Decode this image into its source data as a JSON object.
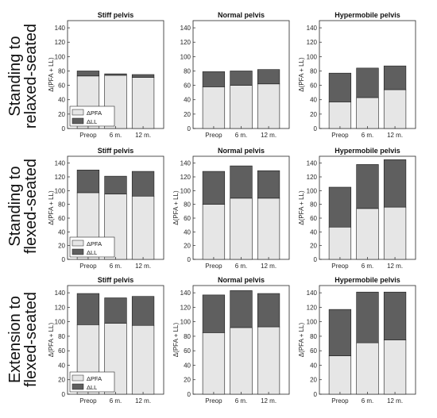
{
  "figure": {
    "row_labels": [
      [
        "Standing to",
        "relaxed-seated"
      ],
      [
        "Standing to",
        "flexed-seated"
      ],
      [
        "Extension to",
        "flexed-seated"
      ]
    ]
  },
  "colors": {
    "pfa": "#e6e6e6",
    "ll": "#5f5f5f",
    "axis": "#262626",
    "grid": "#ffffff"
  },
  "chart_data": [
    {
      "type": "bar",
      "stacked": true,
      "title": "Stiff pelvis",
      "ylabel": "Δ(PFA + LL)",
      "ylim": [
        0,
        150
      ],
      "yticks": [
        0,
        20,
        40,
        60,
        80,
        100,
        120,
        140
      ],
      "categories": [
        "Preop",
        "6 m.",
        "12 m."
      ],
      "series": [
        {
          "name": "ΔPFA",
          "values": [
            73,
            74,
            71
          ]
        },
        {
          "name": "ΔLL",
          "values": [
            7,
            2,
            4
          ]
        }
      ],
      "legend": "bottom-left"
    },
    {
      "type": "bar",
      "stacked": true,
      "title": "Normal pelvis",
      "ylabel": "",
      "ylim": [
        0,
        150
      ],
      "yticks": [
        0,
        20,
        40,
        60,
        80,
        100,
        120,
        140
      ],
      "categories": [
        "Preop",
        "6 m.",
        "12 m."
      ],
      "series": [
        {
          "name": "ΔPFA",
          "values": [
            58,
            60,
            62
          ]
        },
        {
          "name": "ΔLL",
          "values": [
            21,
            20,
            20
          ]
        }
      ]
    },
    {
      "type": "bar",
      "stacked": true,
      "title": "Hypermobile pelvis",
      "ylabel": "Δ(PFA + LL)",
      "ylim": [
        0,
        150
      ],
      "yticks": [
        0,
        20,
        40,
        60,
        80,
        100,
        120,
        140
      ],
      "categories": [
        "Preop",
        "6 m.",
        "12 m."
      ],
      "series": [
        {
          "name": "ΔPFA",
          "values": [
            37,
            43,
            54
          ]
        },
        {
          "name": "ΔLL",
          "values": [
            40,
            41,
            33
          ]
        }
      ]
    },
    {
      "type": "bar",
      "stacked": true,
      "title": "Stiff pelvis",
      "ylabel": "Δ(PFA + LL)",
      "ylim": [
        0,
        150
      ],
      "yticks": [
        0,
        20,
        40,
        60,
        80,
        100,
        120,
        140
      ],
      "categories": [
        "Preop",
        "6 m.",
        "12 m."
      ],
      "series": [
        {
          "name": "ΔPFA",
          "values": [
            97,
            95,
            92
          ]
        },
        {
          "name": "ΔLL",
          "values": [
            33,
            26,
            36
          ]
        }
      ],
      "legend": "bottom-left"
    },
    {
      "type": "bar",
      "stacked": true,
      "title": "Normal pelvis",
      "ylabel": "Δ(PFA + LL)",
      "ylim": [
        0,
        150
      ],
      "yticks": [
        0,
        20,
        40,
        60,
        80,
        100,
        120,
        140
      ],
      "categories": [
        "Preop",
        "6 m.",
        "12 m."
      ],
      "series": [
        {
          "name": "ΔPFA",
          "values": [
            80,
            89,
            89
          ]
        },
        {
          "name": "ΔLL",
          "values": [
            48,
            47,
            40
          ]
        }
      ]
    },
    {
      "type": "bar",
      "stacked": true,
      "title": "Hypermobile pelvis",
      "ylabel": "Δ(PFA + LL)",
      "ylim": [
        0,
        150
      ],
      "yticks": [
        0,
        20,
        40,
        60,
        80,
        100,
        120,
        140
      ],
      "categories": [
        "Preop",
        "6 m.",
        "12 m."
      ],
      "series": [
        {
          "name": "ΔPFA",
          "values": [
            47,
            74,
            76
          ]
        },
        {
          "name": "ΔLL",
          "values": [
            58,
            64,
            69
          ]
        }
      ]
    },
    {
      "type": "bar",
      "stacked": true,
      "title": "Stiff pelvis",
      "ylabel": "Δ(PFA + LL)",
      "ylim": [
        0,
        150
      ],
      "yticks": [
        0,
        20,
        40,
        60,
        80,
        100,
        120,
        140
      ],
      "categories": [
        "Preop",
        "6 m.",
        "12 m."
      ],
      "series": [
        {
          "name": "ΔPFA",
          "values": [
            96,
            98,
            95
          ]
        },
        {
          "name": "ΔLL",
          "values": [
            43,
            35,
            40
          ]
        }
      ],
      "legend": "bottom-left"
    },
    {
      "type": "bar",
      "stacked": true,
      "title": "Normal pelvis",
      "ylabel": "Δ(PFA + LL)",
      "ylim": [
        0,
        150
      ],
      "yticks": [
        0,
        20,
        40,
        60,
        80,
        100,
        120,
        140
      ],
      "categories": [
        "Preop",
        "6 m.",
        "12 m."
      ],
      "series": [
        {
          "name": "ΔPFA",
          "values": [
            85,
            92,
            93
          ]
        },
        {
          "name": "ΔLL",
          "values": [
            52,
            51,
            46
          ]
        }
      ]
    },
    {
      "type": "bar",
      "stacked": true,
      "title": "Hypermobile pelvis",
      "ylabel": "Δ(PFA + LL)",
      "ylim": [
        0,
        150
      ],
      "yticks": [
        0,
        20,
        40,
        60,
        80,
        100,
        120,
        140
      ],
      "categories": [
        "Preop",
        "6 m.",
        "12 m."
      ],
      "series": [
        {
          "name": "ΔPFA",
          "values": [
            53,
            71,
            75
          ]
        },
        {
          "name": "ΔLL",
          "values": [
            64,
            70,
            66
          ]
        }
      ]
    }
  ]
}
